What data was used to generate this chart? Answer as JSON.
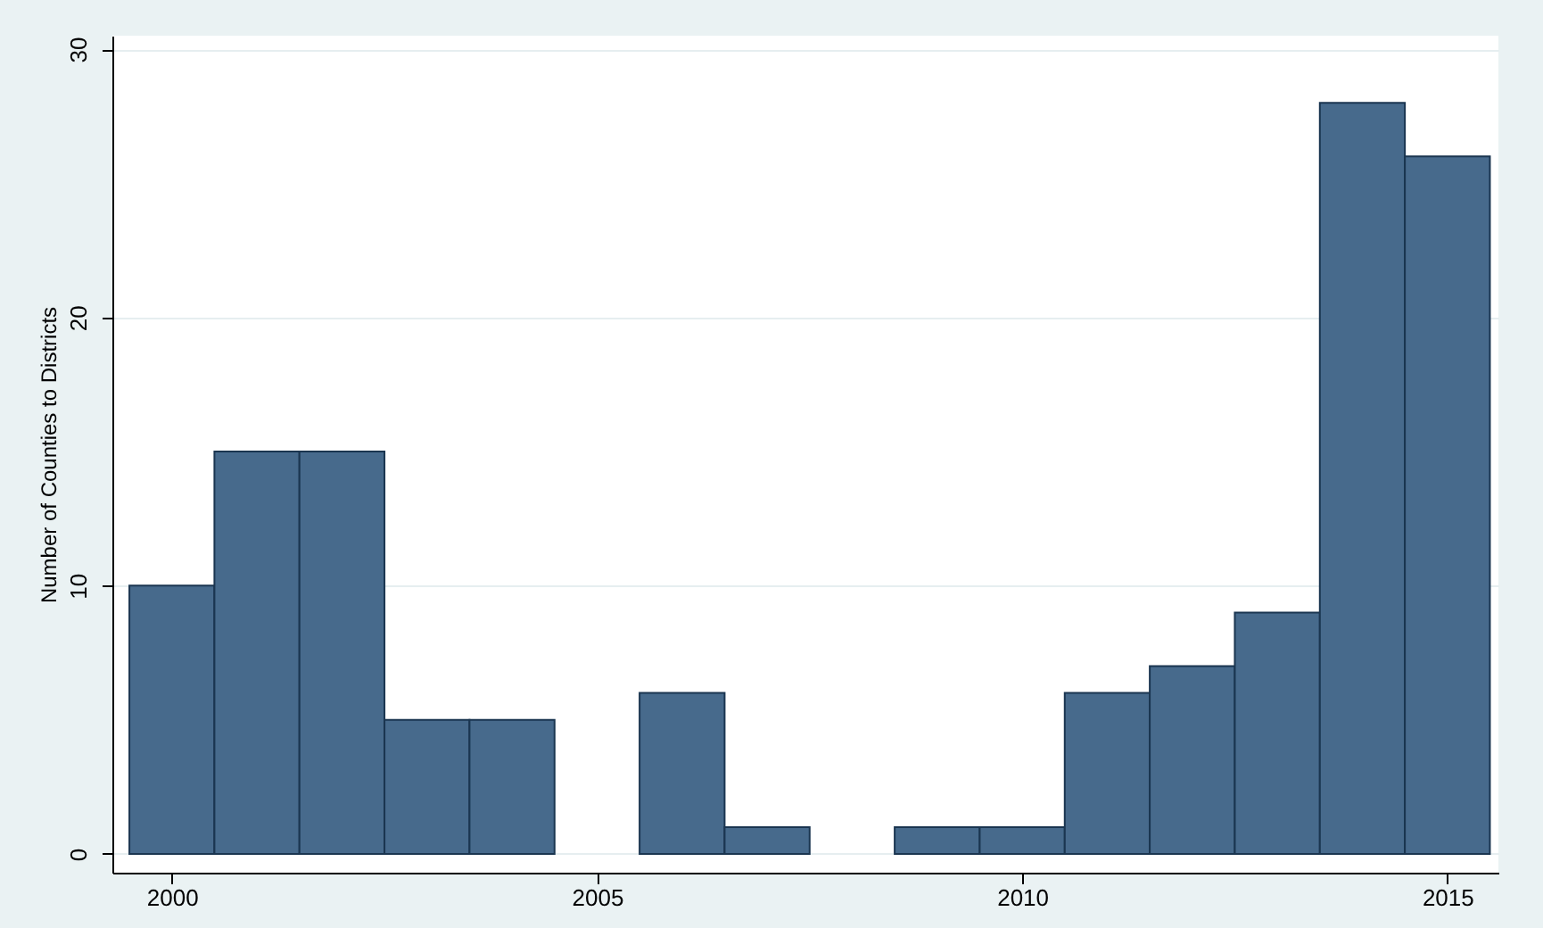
{
  "chart_data": {
    "type": "histogram",
    "ylabel": "Number of Counties to Districts",
    "bins": [
      1999.5,
      2000.5,
      2001.5,
      2002.5,
      2003.5,
      2004.5,
      2005.5,
      2006.5,
      2007.5,
      2008.5,
      2009.5,
      2010.5,
      2011.5,
      2012.5,
      2013.5,
      2014.5,
      2015.5
    ],
    "values": [
      10,
      15,
      15,
      5,
      5,
      0,
      6,
      1,
      0,
      1,
      1,
      6,
      7,
      9,
      28,
      26
    ],
    "color": "#476a8c",
    "xlim": [
      1999.3,
      2015.6
    ],
    "xticks": [
      2000,
      2005,
      2010,
      2015
    ],
    "ylim": [
      -0.7,
      30.5
    ],
    "yticks": [
      0,
      10,
      20,
      30
    ],
    "grid": "y"
  }
}
